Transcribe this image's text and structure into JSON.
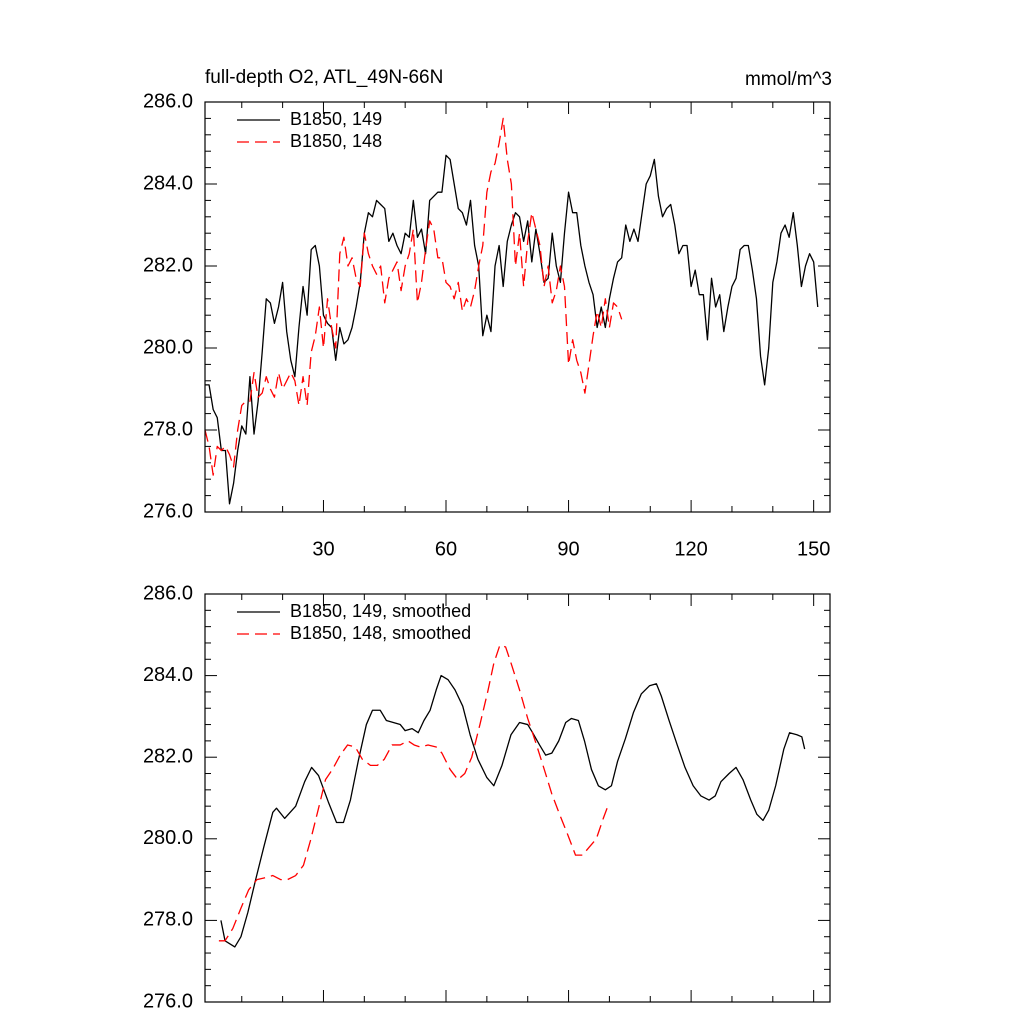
{
  "chart_data": [
    {
      "type": "line",
      "title": "full-depth O2, ATL_49N-66N",
      "units": "mmol/m^3",
      "xlim": [
        1,
        154
      ],
      "xticks": [
        30,
        60,
        90,
        120,
        150
      ],
      "ylim": [
        276,
        286
      ],
      "yticks": [
        {
          "value": 276,
          "label": "276.0"
        },
        {
          "value": 278,
          "label": "278.0"
        },
        {
          "value": 280,
          "label": "280.0"
        },
        {
          "value": 282,
          "label": "282.0"
        },
        {
          "value": 284,
          "label": "284.0"
        },
        {
          "value": 286,
          "label": "286.0"
        }
      ],
      "legend": "upper left",
      "series": [
        {
          "name": "B1850, 149",
          "color": "#000000",
          "dash": false,
          "x": [
            1,
            2,
            3,
            4,
            5,
            6,
            7,
            8,
            9,
            10,
            11,
            12,
            13,
            14,
            15,
            16,
            17,
            18,
            19,
            20,
            21,
            22,
            23,
            24,
            25,
            26,
            27,
            28,
            29,
            30,
            31,
            32,
            33,
            34,
            35,
            36,
            37,
            38,
            39,
            40,
            41,
            42,
            43,
            44,
            45,
            46,
            47,
            48,
            49,
            50,
            51,
            52,
            53,
            54,
            55,
            56,
            57,
            58,
            59,
            60,
            61,
            62,
            63,
            64,
            65,
            66,
            67,
            68,
            69,
            70,
            71,
            72,
            73,
            74,
            75,
            76,
            77,
            78,
            79,
            80,
            81,
            82,
            83,
            84,
            85,
            86,
            87,
            88,
            89,
            90,
            91,
            92,
            93,
            94,
            95,
            96,
            97,
            98,
            99,
            100,
            101,
            102,
            103,
            104,
            105,
            106,
            107,
            108,
            109,
            110,
            111,
            112,
            113,
            114,
            115,
            116,
            117,
            118,
            119,
            120,
            121,
            122,
            123,
            124,
            125,
            126,
            127,
            128,
            129,
            130,
            131,
            132,
            133,
            134,
            135,
            136,
            137,
            138,
            139,
            140,
            141,
            142,
            143,
            144,
            145,
            146,
            147,
            148,
            149,
            150,
            151
          ],
          "values": [
            279.1,
            279.1,
            278.5,
            278.3,
            277.5,
            277.5,
            276.2,
            276.7,
            277.5,
            278.1,
            277.9,
            279.3,
            277.9,
            278.7,
            279.9,
            281.2,
            281.1,
            280.6,
            281.0,
            281.6,
            280.4,
            279.7,
            279.3,
            280.5,
            281.5,
            280.8,
            282.4,
            282.5,
            282.0,
            280.8,
            280.6,
            280.5,
            279.7,
            280.5,
            280.1,
            280.2,
            280.5,
            281.0,
            281.6,
            282.8,
            283.3,
            283.2,
            283.6,
            283.5,
            283.4,
            282.6,
            282.8,
            282.5,
            282.3,
            282.8,
            282.7,
            283.6,
            282.7,
            282.9,
            282.3,
            283.6,
            283.7,
            283.8,
            283.8,
            284.7,
            284.6,
            284.0,
            283.4,
            283.3,
            283.0,
            283.6,
            282.5,
            282.0,
            280.3,
            280.8,
            280.4,
            282.0,
            282.5,
            281.5,
            282.6,
            283.0,
            283.3,
            283.2,
            282.6,
            283.1,
            282.1,
            282.9,
            282.3,
            281.6,
            281.7,
            282.8,
            282.0,
            281.6,
            282.8,
            283.8,
            283.3,
            283.3,
            282.5,
            282.0,
            281.6,
            281.3,
            280.5,
            281.0,
            280.5,
            281.2,
            281.7,
            282.1,
            282.2,
            283.0,
            282.6,
            282.9,
            282.6,
            283.3,
            284.0,
            284.2,
            284.6,
            283.7,
            283.2,
            283.4,
            283.5,
            283.0,
            282.3,
            282.5,
            282.5,
            281.5,
            281.9,
            281.3,
            281.3,
            280.2,
            281.7,
            281.0,
            281.3,
            280.4,
            281.0,
            281.5,
            281.7,
            282.4,
            282.5,
            282.5,
            281.9,
            281.2,
            279.8,
            279.1,
            280.0,
            281.6,
            282.1,
            282.8,
            283.0,
            282.7,
            283.3,
            282.5,
            281.5,
            282.0,
            282.3,
            282.1,
            281.0
          ]
        },
        {
          "name": "B1850, 148",
          "color": "#ff0000",
          "dash": true,
          "x": [
            1,
            2,
            3,
            4,
            5,
            6,
            7,
            8,
            9,
            10,
            11,
            12,
            13,
            14,
            15,
            16,
            17,
            18,
            19,
            20,
            21,
            22,
            23,
            24,
            25,
            26,
            27,
            28,
            29,
            30,
            31,
            32,
            33,
            34,
            35,
            36,
            37,
            38,
            39,
            40,
            41,
            42,
            43,
            44,
            45,
            46,
            47,
            48,
            49,
            50,
            51,
            52,
            53,
            54,
            55,
            56,
            57,
            58,
            59,
            60,
            61,
            62,
            63,
            64,
            65,
            66,
            67,
            68,
            69,
            70,
            71,
            72,
            73,
            74,
            75,
            76,
            77,
            78,
            79,
            80,
            81,
            82,
            83,
            84,
            85,
            86,
            87,
            88,
            89,
            90,
            91,
            92,
            93,
            94,
            95,
            96,
            97,
            98,
            99,
            100,
            101,
            102,
            103
          ],
          "values": [
            278.0,
            277.6,
            276.9,
            277.6,
            277.5,
            277.6,
            277.4,
            277.1,
            278.0,
            278.6,
            278.7,
            278.7,
            279.4,
            278.8,
            278.9,
            279.3,
            279.0,
            278.8,
            279.4,
            279.0,
            279.2,
            279.4,
            279.2,
            278.6,
            279.3,
            278.6,
            279.9,
            280.3,
            281.0,
            280.0,
            281.2,
            280.5,
            280.0,
            282.3,
            282.7,
            282.0,
            282.2,
            281.7,
            281.5,
            282.8,
            282.3,
            282.0,
            281.8,
            282.0,
            281.1,
            281.7,
            281.9,
            282.1,
            281.4,
            282.0,
            282.3,
            282.9,
            281.1,
            281.6,
            282.4,
            283.1,
            282.9,
            282.2,
            282.2,
            281.6,
            281.5,
            281.2,
            281.6,
            280.9,
            281.2,
            281.0,
            281.4,
            282.0,
            282.5,
            283.8,
            284.3,
            284.5,
            285.0,
            285.6,
            284.6,
            284.0,
            282.0,
            282.8,
            281.5,
            282.6,
            283.3,
            282.9,
            282.5,
            281.5,
            282.0,
            281.1,
            281.4,
            282.0,
            281.5,
            279.6,
            280.2,
            279.7,
            279.4,
            278.9,
            279.6,
            280.3,
            280.9,
            280.5,
            281.2,
            280.5,
            281.1,
            281.0,
            280.7
          ]
        }
      ]
    },
    {
      "type": "line",
      "xlim": [
        1,
        154
      ],
      "ylim": [
        276,
        286
      ],
      "yticks": [
        {
          "value": 276,
          "label": "276.0"
        },
        {
          "value": 278,
          "label": "278.0"
        },
        {
          "value": 280,
          "label": "280.0"
        },
        {
          "value": 282,
          "label": "282.0"
        },
        {
          "value": 284,
          "label": "284.0"
        },
        {
          "value": 286,
          "label": "286.0"
        }
      ],
      "legend": "upper left",
      "series": [
        {
          "name": "B1850, 149, smoothed",
          "color": "#000000",
          "dash": false,
          "x": [
            4.9,
            5.9,
            8.3,
            9.8,
            11.5,
            13.4,
            15.4,
            17.6,
            18.5,
            20.5,
            23.2,
            25.4,
            27.1,
            28.8,
            31.2,
            33.2,
            34.9,
            36.6,
            38.5,
            40.5,
            42.0,
            43.9,
            45.4,
            47.1,
            48.8,
            50.0,
            51.7,
            53.2,
            54.6,
            56.1,
            57.6,
            58.8,
            60.5,
            62.2,
            64.1,
            65.9,
            67.8,
            70.0,
            71.7,
            73.7,
            75.9,
            78.0,
            80.0,
            81.2,
            82.9,
            84.4,
            85.9,
            87.6,
            89.3,
            90.7,
            92.4,
            93.9,
            95.6,
            97.3,
            99.0,
            100.5,
            102.0,
            103.9,
            105.9,
            107.8,
            109.8,
            111.5,
            112.7,
            114.6,
            116.6,
            118.5,
            120.5,
            122.4,
            124.4,
            125.9,
            127.3,
            129.3,
            131.0,
            132.7,
            134.6,
            136.1,
            137.6,
            139.0,
            140.7,
            142.7,
            144.1,
            145.9,
            147.1,
            147.8
          ],
          "values": [
            278.0,
            277.5,
            277.35,
            277.6,
            278.2,
            279.0,
            279.8,
            280.65,
            280.75,
            280.5,
            280.8,
            281.4,
            281.75,
            281.55,
            280.9,
            280.4,
            280.4,
            280.95,
            281.9,
            282.8,
            283.15,
            283.15,
            282.9,
            282.85,
            282.8,
            282.65,
            282.7,
            282.6,
            282.9,
            283.15,
            283.65,
            284.0,
            283.9,
            283.65,
            283.25,
            282.55,
            281.95,
            281.5,
            281.3,
            281.8,
            282.55,
            282.85,
            282.8,
            282.6,
            282.3,
            282.05,
            282.1,
            282.4,
            282.85,
            282.95,
            282.9,
            282.4,
            281.7,
            281.3,
            281.2,
            281.3,
            281.9,
            282.45,
            283.1,
            283.55,
            283.75,
            283.8,
            283.5,
            282.9,
            282.3,
            281.75,
            281.3,
            281.05,
            280.95,
            281.05,
            281.4,
            281.6,
            281.75,
            281.45,
            280.95,
            280.6,
            280.45,
            280.7,
            281.3,
            282.2,
            282.6,
            282.55,
            282.5,
            282.2
          ]
        },
        {
          "name": "B1850, 148, smoothed",
          "color": "#ff0000",
          "dash": true,
          "x": [
            4.4,
            5.9,
            7.8,
            9.8,
            11.7,
            13.7,
            15.9,
            17.6,
            19.5,
            21.2,
            23.2,
            25.1,
            26.8,
            28.8,
            30.5,
            32.2,
            34.1,
            35.9,
            37.8,
            39.5,
            41.5,
            43.2,
            44.9,
            46.8,
            48.8,
            50.7,
            52.2,
            53.7,
            55.6,
            57.6,
            59.0,
            61.0,
            62.9,
            64.6,
            66.3,
            68.3,
            70.2,
            71.7,
            73.2,
            74.6,
            76.1,
            78.0,
            80.0,
            82.0,
            83.9,
            85.9,
            87.8,
            89.8,
            91.7,
            93.4,
            95.1,
            96.8,
            98.5,
            99.8
          ],
          "values": [
            277.5,
            277.5,
            277.8,
            278.3,
            278.75,
            279.0,
            279.05,
            279.1,
            279.0,
            279.0,
            279.1,
            279.35,
            279.95,
            280.75,
            281.45,
            281.7,
            282.05,
            282.3,
            282.25,
            281.95,
            281.8,
            281.8,
            281.95,
            282.3,
            282.3,
            282.4,
            282.3,
            282.25,
            282.3,
            282.25,
            282.1,
            281.7,
            281.45,
            281.6,
            282.0,
            282.8,
            283.6,
            284.3,
            284.75,
            284.7,
            284.25,
            283.65,
            282.95,
            282.35,
            281.75,
            281.1,
            280.6,
            280.1,
            279.6,
            279.6,
            279.8,
            280.0,
            280.5,
            280.85
          ]
        }
      ]
    }
  ]
}
